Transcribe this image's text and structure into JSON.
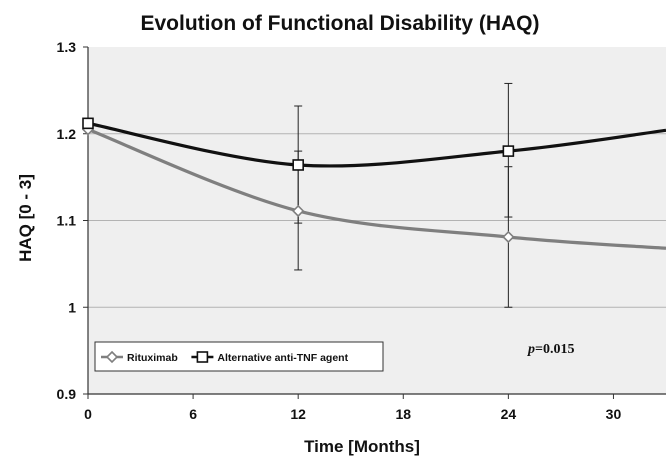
{
  "chart_data": {
    "type": "line",
    "title": "Evolution of Functional Disability (HAQ)",
    "xlabel": "Time [Months]",
    "ylabel": "HAQ [0 - 3]",
    "xlim": [
      0,
      33
    ],
    "ylim": [
      0.9,
      1.3
    ],
    "x_ticks": [
      0,
      6,
      12,
      18,
      24,
      30
    ],
    "x_tick_labels": [
      "0",
      "6",
      "12",
      "18",
      "24",
      "30"
    ],
    "y_ticks": [
      0.9,
      1.0,
      1.1,
      1.2,
      1.3
    ],
    "y_tick_labels": [
      "0.9",
      "1",
      "1.1",
      "1.2",
      "1.3"
    ],
    "grid": "horizontal",
    "legend_position": "bottom-left",
    "annotation": "p=0.015",
    "series": [
      {
        "name": "Rituximab",
        "marker": "diamond",
        "color": "#7f7f7f",
        "points": [
          {
            "x": 0,
            "y": 1.205
          },
          {
            "x": 12,
            "y": 1.111,
            "err_low": 1.043,
            "err_high": 1.18
          },
          {
            "x": 24,
            "y": 1.081,
            "err_low": 1.0,
            "err_high": 1.162
          }
        ],
        "curve": [
          [
            0,
            1.205
          ],
          [
            12,
            1.111
          ],
          [
            24,
            1.081
          ],
          [
            33,
            1.068
          ]
        ]
      },
      {
        "name": "Alternative anti-TNF agent",
        "marker": "square",
        "color": "#111111",
        "points": [
          {
            "x": 0,
            "y": 1.212
          },
          {
            "x": 12,
            "y": 1.164,
            "err_low": 1.097,
            "err_high": 1.232
          },
          {
            "x": 24,
            "y": 1.18,
            "err_low": 1.104,
            "err_high": 1.258
          }
        ],
        "curve": [
          [
            0,
            1.212
          ],
          [
            12,
            1.164
          ],
          [
            24,
            1.18
          ],
          [
            33,
            1.204
          ]
        ]
      }
    ]
  },
  "colors": {
    "plot_background": "#efefef",
    "gridline": "#b3b3b3",
    "axis": "#333333"
  }
}
